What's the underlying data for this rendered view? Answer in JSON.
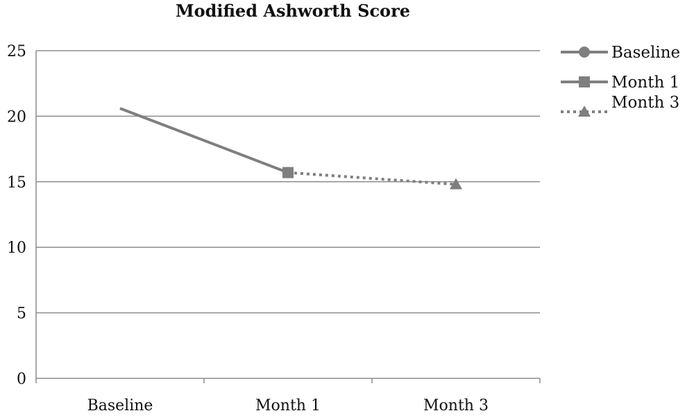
{
  "chart_data": {
    "type": "line",
    "title": "Modified Ashworth Score",
    "xlabel": "",
    "ylabel": "",
    "categories": [
      "Baseline",
      "Month 1",
      "Month 3"
    ],
    "ylim": [
      0,
      25
    ],
    "yticks": [
      "0",
      "5",
      "10",
      "15",
      "20",
      "25"
    ],
    "grid": true,
    "legend_position": "right",
    "series": [
      {
        "name": "Baseline",
        "marker": "circle",
        "style": "solid",
        "points": [
          {
            "x": "Baseline",
            "y": 20.6
          },
          {
            "x": "Month 1",
            "y": 15.7
          }
        ]
      },
      {
        "name": "Month 1",
        "marker": "square",
        "style": "solid",
        "points": [
          {
            "x": "Month 1",
            "y": 15.7
          }
        ]
      },
      {
        "name": "Month 3",
        "marker": "triangle",
        "style": "dotted",
        "points": [
          {
            "x": "Month 1",
            "y": 15.7
          },
          {
            "x": "Month 3",
            "y": 14.8
          }
        ]
      }
    ],
    "colors": {
      "series": "#7f7f7f",
      "grid": "#8c8c8c",
      "axis": "#8c8c8c"
    }
  }
}
